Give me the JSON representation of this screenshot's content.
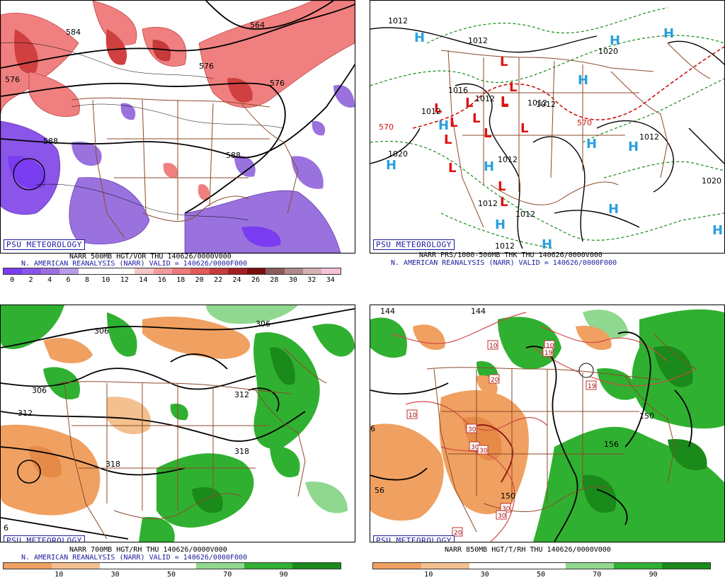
{
  "panels": [
    {
      "id": "tl",
      "badge": "PSU METEOROLOGY",
      "caption1": "NARR 500MB HGT/VOR THU 140626/0000V000",
      "caption2": "N. AMERICAN REANALYSIS (NARR) VALID = 140626/0000F000",
      "colorbar_labels": [
        "0",
        "2",
        "4",
        "6",
        "8",
        "10",
        "12",
        "14",
        "16",
        "18",
        "20",
        "22",
        "24",
        "26",
        "28",
        "30",
        "32",
        "34"
      ],
      "colorbar_colors": [
        "#7a3cf0",
        "#8a55e8",
        "#9a72de",
        "#b79ce6",
        "#ffffff",
        "#ffffff",
        "#ffffff",
        "#f7c6c6",
        "#f39a9a",
        "#ec7a7a",
        "#e25a5a",
        "#c83a3a",
        "#a32020",
        "#7a0e0e",
        "#8c5c5c",
        "#b08a8a",
        "#d4b2b2",
        "#f5c0d8"
      ],
      "contour_labels": [
        "564",
        "584",
        "576",
        "576",
        "588",
        "588",
        "576"
      ]
    },
    {
      "id": "tr",
      "badge": "PSU METEOROLOGY",
      "caption1": "NARR PRS/1000-500MB THK THU 140626/0000V000",
      "caption2": "N. AMERICAN REANALYSIS (NARR) VALID = 140626/0000F000",
      "contour_labels": [
        "1012",
        "1012",
        "1016",
        "1012",
        "1012",
        "1012",
        "1020",
        "1020",
        "1012",
        "1012",
        "1012",
        "1012",
        "1012",
        "1020",
        "570",
        "570",
        "1012"
      ]
    },
    {
      "id": "bl",
      "badge": "PSU METEOROLOGY",
      "caption1": "NARR 700MB HGT/RH THU 140626/0000V000",
      "caption2": "N. AMERICAN REANALYSIS (NARR) VALID = 140626/0000F000",
      "colorbar_labels": [
        "10",
        "30",
        "50",
        "70",
        "90"
      ],
      "colorbar_colors": [
        "#f0a060",
        "#f4c090",
        "#ffffff",
        "#ffffff",
        "#90d890",
        "#30b030",
        "#1a8a1a"
      ],
      "contour_labels": [
        "306",
        "306",
        "306",
        "312",
        "312",
        "318",
        "318",
        "6"
      ]
    },
    {
      "id": "br",
      "badge": "PSU METEOROLOGY",
      "caption1": "NARR 850MB HGT/T/RH THU 140626/0000V000",
      "colorbar_labels": [
        "10",
        "30",
        "50",
        "70",
        "90"
      ],
      "colorbar_colors": [
        "#f0a060",
        "#f4c090",
        "#ffffff",
        "#ffffff",
        "#90d890",
        "#30b030",
        "#1a8a1a"
      ],
      "contour_labels": [
        "144",
        "144",
        "10",
        "10",
        "19",
        "19",
        "20",
        "10",
        "30",
        "30",
        "30",
        "30",
        "150",
        "30",
        "20",
        "156",
        "150",
        "56",
        "6"
      ]
    }
  ],
  "pressure_centers": {
    "H": "H",
    "L": "L"
  }
}
